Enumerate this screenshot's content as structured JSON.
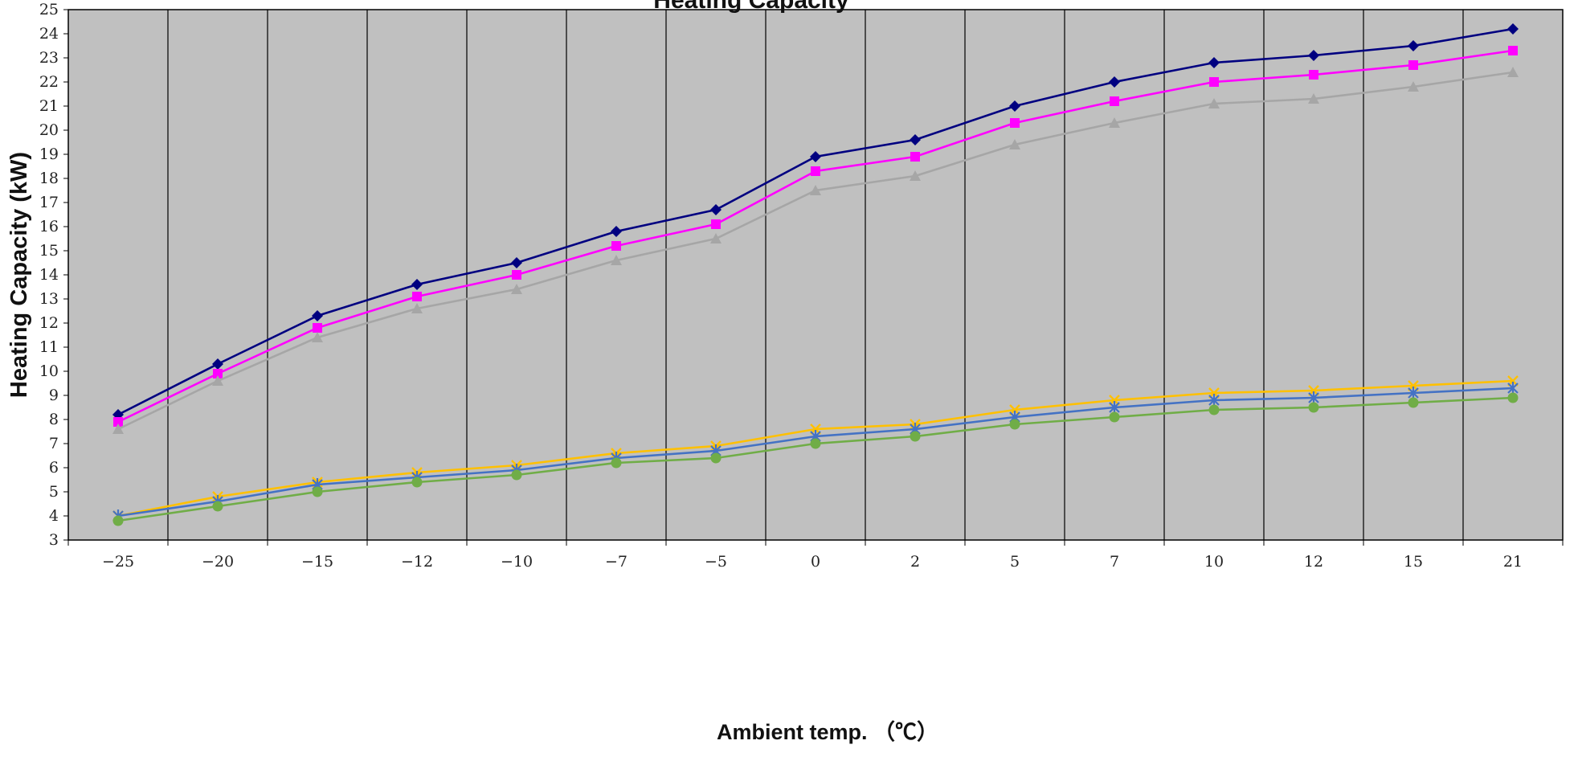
{
  "chart_data": {
    "type": "line",
    "title": "Heating Capacity",
    "xlabel": "Ambient temp. （℃）",
    "ylabel": "Heating Capacity (kW)",
    "categories": [
      "-25",
      "-20",
      "-15",
      "-12",
      "-10",
      "-7",
      "-5",
      "0",
      "2",
      "5",
      "7",
      "10",
      "12",
      "15",
      "21"
    ],
    "ylim": [
      3,
      25
    ],
    "yticks": [
      3,
      4,
      5,
      6,
      7,
      8,
      9,
      10,
      11,
      12,
      13,
      14,
      15,
      16,
      17,
      18,
      19,
      20,
      21,
      22,
      23,
      24,
      25
    ],
    "grid": true,
    "legend": "none",
    "series": [
      {
        "color": "#000080",
        "marker": "diamond",
        "values": [
          8.2,
          10.3,
          12.3,
          13.6,
          14.5,
          15.8,
          16.7,
          18.9,
          19.6,
          21.0,
          22.0,
          22.8,
          23.1,
          23.5,
          24.2
        ]
      },
      {
        "color": "#ff00ff",
        "marker": "square",
        "values": [
          7.9,
          9.9,
          11.8,
          13.1,
          14.0,
          15.2,
          16.1,
          18.3,
          18.9,
          20.3,
          21.2,
          22.0,
          22.3,
          22.7,
          23.3
        ]
      },
      {
        "color": "#a6a6a6",
        "marker": "triangle",
        "values": [
          7.6,
          9.6,
          11.4,
          12.6,
          13.4,
          14.6,
          15.5,
          17.5,
          18.1,
          19.4,
          20.3,
          21.1,
          21.3,
          21.8,
          22.4
        ]
      },
      {
        "color": "#ffc000",
        "marker": "cross",
        "values": [
          4.0,
          4.8,
          5.4,
          5.8,
          6.1,
          6.6,
          6.9,
          7.6,
          7.8,
          8.4,
          8.8,
          9.1,
          9.2,
          9.4,
          9.6
        ]
      },
      {
        "color": "#4472c4",
        "marker": "asterisk",
        "values": [
          4.0,
          4.6,
          5.3,
          5.6,
          5.9,
          6.4,
          6.7,
          7.3,
          7.6,
          8.1,
          8.5,
          8.8,
          8.9,
          9.1,
          9.3
        ]
      },
      {
        "color": "#70ad47",
        "marker": "circle",
        "values": [
          3.8,
          4.4,
          5.0,
          5.4,
          5.7,
          6.2,
          6.4,
          7.0,
          7.3,
          7.8,
          8.1,
          8.4,
          8.5,
          8.7,
          8.9
        ]
      }
    ]
  },
  "colors": {
    "plot_bg": "#c0c0c0",
    "gridline": "#000000",
    "axis": "#000000"
  }
}
